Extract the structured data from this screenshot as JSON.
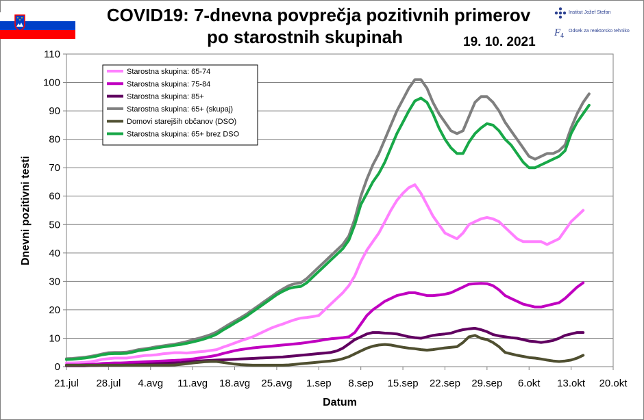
{
  "header": {
    "title_line1": "COVID19: 7-dnevna povprečja pozitivnih primerov",
    "title_line2": "po starostnih skupinah",
    "date": "19. 10. 2021",
    "logo_line1": "Institut Jožef Stefan",
    "logo_line2": "Odsek za reaktorsko tehniko",
    "flag_colors": [
      "#ffffff",
      "#0040c8",
      "#ff0000"
    ]
  },
  "chart_data": {
    "type": "line",
    "title": "COVID19: 7-dnevna povprečja pozitivnih primerov po starostnih skupinah",
    "xlabel": "Datum",
    "ylabel": "Dnevni pozitivni testi",
    "ylim": [
      0,
      110
    ],
    "yticks": [
      0,
      10,
      20,
      30,
      40,
      50,
      60,
      70,
      80,
      90,
      100,
      110
    ],
    "xlim": [
      0,
      91
    ],
    "xticks": [
      {
        "day": 0,
        "label": "21.jul"
      },
      {
        "day": 7,
        "label": "28.jul"
      },
      {
        "day": 14,
        "label": "4.avg"
      },
      {
        "day": 21,
        "label": "11.avg"
      },
      {
        "day": 28,
        "label": "18.avg"
      },
      {
        "day": 35,
        "label": "25.avg"
      },
      {
        "day": 42,
        "label": "1.sep"
      },
      {
        "day": 49,
        "label": "8.sep"
      },
      {
        "day": 56,
        "label": "15.sep"
      },
      {
        "day": 63,
        "label": "22.sep"
      },
      {
        "day": 70,
        "label": "29.sep"
      },
      {
        "day": 77,
        "label": "6.okt"
      },
      {
        "day": 84,
        "label": "13.okt"
      },
      {
        "day": 91,
        "label": "20.okt"
      }
    ],
    "grid": true,
    "legend_position": "top-left",
    "x_start_day": 0,
    "series": [
      {
        "name": "Starostna skupina: 65-74",
        "color": "#ff80ff",
        "values": [
          1.3,
          1.3,
          1.4,
          1.5,
          1.7,
          2.1,
          2.6,
          2.8,
          3,
          3,
          3,
          3.3,
          3.6,
          3.9,
          4,
          4.2,
          4.5,
          4.7,
          4.9,
          4.9,
          4.8,
          5,
          5.2,
          5.4,
          5.7,
          6,
          6.8,
          7.5,
          8.3,
          9.1,
          9.8,
          10.5,
          11.5,
          12.5,
          13.5,
          14.3,
          15,
          15.8,
          16.5,
          17.1,
          17.3,
          17.6,
          18,
          20,
          22,
          24,
          26,
          28.5,
          32,
          37,
          41,
          44,
          47,
          51,
          55,
          58.5,
          61,
          63,
          64,
          61,
          57,
          53,
          50,
          47,
          46,
          45,
          47,
          50,
          51,
          52,
          52.5,
          52,
          51,
          49,
          47,
          45,
          44,
          44,
          44,
          44,
          43,
          44,
          45,
          48,
          51,
          53,
          55
        ]
      },
      {
        "name": "Starostna skupina: 75-84",
        "color": "#c000c0",
        "values": [
          0.6,
          0.6,
          0.6,
          0.7,
          0.8,
          0.9,
          1.1,
          1.2,
          1.3,
          1.3,
          1.4,
          1.5,
          1.6,
          1.7,
          1.8,
          1.9,
          2,
          2.1,
          2.2,
          2.3,
          2.5,
          2.7,
          3,
          3.3,
          3.6,
          4,
          4.6,
          5.1,
          5.6,
          6,
          6.3,
          6.6,
          6.8,
          7,
          7.2,
          7.4,
          7.6,
          7.8,
          8,
          8.2,
          8.5,
          8.8,
          9.1,
          9.5,
          9.8,
          10,
          10.2,
          10.5,
          12,
          15,
          18,
          20,
          21.5,
          23,
          24,
          25,
          25.5,
          26,
          26,
          25.5,
          25,
          25,
          25.2,
          25.5,
          26,
          27,
          28,
          29,
          29.2,
          29.3,
          29.2,
          28.5,
          27,
          25,
          24,
          23,
          22,
          21.5,
          21,
          21,
          21.5,
          22,
          22.5,
          24,
          26,
          28,
          29.5
        ]
      },
      {
        "name": "Starostna skupina: 85+",
        "color": "#600060",
        "values": [
          0.3,
          0.3,
          0.3,
          0.3,
          0.4,
          0.4,
          0.5,
          0.5,
          0.5,
          0.5,
          0.6,
          0.6,
          0.7,
          0.8,
          0.9,
          1,
          1.1,
          1.2,
          1.3,
          1.4,
          1.6,
          1.8,
          2,
          2.1,
          2.2,
          2.3,
          2.4,
          2.5,
          2.6,
          2.7,
          2.8,
          2.9,
          3,
          3.1,
          3.2,
          3.3,
          3.4,
          3.6,
          3.8,
          4,
          4.2,
          4.4,
          4.6,
          4.8,
          5,
          5.5,
          6.5,
          8,
          9.5,
          10.5,
          11.5,
          12,
          12,
          11.8,
          11.7,
          11.5,
          11,
          10.5,
          10.2,
          10,
          10.5,
          11,
          11.3,
          11.5,
          11.8,
          12.5,
          13,
          13.3,
          13.5,
          13,
          12.3,
          11.3,
          10.8,
          10.5,
          10.2,
          10,
          9.5,
          9,
          8.8,
          8.5,
          8.8,
          9.2,
          10,
          11,
          11.5,
          12,
          12
        ]
      },
      {
        "name": "Starostna skupina: 65+ (skupaj)",
        "color": "#7f7f7f",
        "values": [
          2.8,
          2.9,
          3.1,
          3.3,
          3.6,
          4,
          4.5,
          4.9,
          5,
          5,
          5.1,
          5.5,
          6,
          6.3,
          6.6,
          7,
          7.3,
          7.6,
          7.9,
          8.3,
          8.8,
          9.4,
          10,
          10.6,
          11.3,
          12.2,
          13.5,
          14.8,
          16,
          17.2,
          18.5,
          20,
          21.5,
          23,
          24.5,
          26,
          27.3,
          28.5,
          29.2,
          29.5,
          31,
          33,
          35,
          37,
          39,
          41,
          43,
          46,
          52,
          60,
          66,
          71,
          75,
          80,
          85,
          90,
          94,
          98,
          101,
          101,
          98,
          93,
          89,
          86,
          83,
          82,
          83,
          88,
          93,
          95,
          95,
          93,
          90,
          86,
          83,
          80,
          77,
          74,
          73,
          74,
          75,
          75,
          76,
          78,
          84,
          89,
          93,
          96
        ]
      },
      {
        "name": "Domovi starejših občanov (DSO)",
        "color": "#4f4f30",
        "values": [
          0.5,
          0.5,
          0.5,
          0.5,
          0.5,
          0.5,
          0.5,
          0.5,
          0.5,
          0.5,
          0.5,
          0.5,
          0.5,
          0.5,
          0.5,
          0.5,
          0.5,
          0.5,
          0.6,
          0.8,
          1,
          1.3,
          1.5,
          1.7,
          1.8,
          1.8,
          1.5,
          1.2,
          0.9,
          0.7,
          0.6,
          0.5,
          0.5,
          0.5,
          0.5,
          0.5,
          0.5,
          0.6,
          0.8,
          1,
          1.2,
          1.4,
          1.6,
          1.8,
          2,
          2.3,
          2.8,
          3.5,
          4.5,
          5.5,
          6.5,
          7.2,
          7.6,
          7.8,
          7.6,
          7.2,
          6.8,
          6.5,
          6.3,
          6,
          5.8,
          6,
          6.3,
          6.6,
          6.8,
          7,
          8.5,
          10.5,
          11,
          10,
          9.5,
          8.5,
          7,
          5,
          4.5,
          4,
          3.6,
          3.2,
          3,
          2.7,
          2.3,
          2,
          1.8,
          2,
          2.3,
          3,
          4
        ]
      },
      {
        "name": "Starostna skupina: 65+ brez DSO",
        "color": "#18a848",
        "values": [
          2.5,
          2.6,
          2.8,
          3,
          3.3,
          3.7,
          4.2,
          4.5,
          4.6,
          4.6,
          4.7,
          5.1,
          5.6,
          5.9,
          6.2,
          6.6,
          6.9,
          7.2,
          7.5,
          7.8,
          8.2,
          8.7,
          9.2,
          9.8,
          10.5,
          11.4,
          12.8,
          14,
          15.3,
          16.5,
          17.8,
          19.3,
          20.8,
          22.3,
          23.8,
          25.3,
          26.5,
          27.5,
          28,
          28.2,
          29.5,
          31.5,
          33.5,
          35.5,
          37.5,
          39.5,
          41.5,
          44.5,
          50,
          57,
          61,
          65,
          68,
          72,
          77,
          82,
          86,
          90,
          93.5,
          94.5,
          93,
          89,
          84,
          80,
          77,
          75,
          75,
          79,
          82,
          84,
          85.5,
          85,
          83,
          80,
          78,
          75,
          72,
          70,
          70,
          71,
          72,
          73,
          74,
          76,
          82,
          86,
          89,
          92
        ]
      }
    ]
  }
}
